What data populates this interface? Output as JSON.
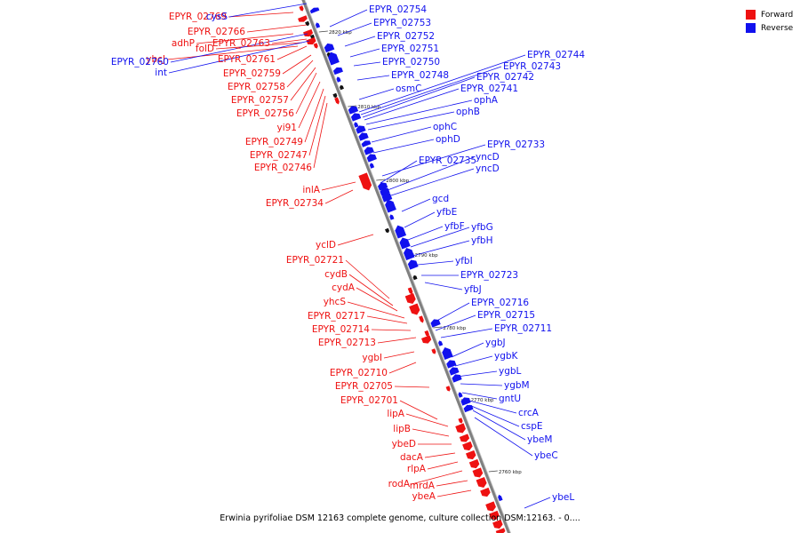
{
  "legend": {
    "forward": {
      "label": "Forward",
      "color": "#ee1111"
    },
    "reverse": {
      "label": "Reverse",
      "color": "#1111ee"
    }
  },
  "caption": "Erwinia pyrifoliae DSM 12163 complete genome, culture collection DSM:12163. - 0....",
  "colors": {
    "axis": "#808080",
    "forward": "#ee1111",
    "reverse": "#1111ee",
    "tiny_feature": "#111111"
  },
  "ticks": [
    "2820 kbp",
    "2810 kbp",
    "2800 kbp",
    "2790 kbp",
    "2780 kbp",
    "2770 kbp",
    "2760 kbp"
  ],
  "forward_labels": [
    "EPYR_02769",
    "EPYR_02766",
    "adhP",
    "EPYR_02763",
    "folD",
    "ybcJ",
    "EPYR_02761",
    "EPYR_02759",
    "EPYR_02758",
    "EPYR_02757",
    "EPYR_02756",
    "yi91",
    "EPYR_02749",
    "EPYR_02747",
    "EPYR_02746",
    "inlA",
    "EPYR_02734",
    "yclD",
    "EPYR_02721",
    "cydB",
    "cydA",
    "yhcS",
    "EPYR_02717",
    "EPYR_02714",
    "EPYR_02713",
    "ygbI",
    "EPYR_02710",
    "EPYR_02705",
    "EPYR_02701",
    "lipA",
    "lipB",
    "ybeD",
    "dacA",
    "rlpA",
    "rodA",
    "mrdA",
    "ybeA"
  ],
  "reverse_labels_left": [
    "cysS",
    "EPYR_02760",
    "int"
  ],
  "reverse_labels_right": [
    "EPYR_02754",
    "EPYR_02753",
    "EPYR_02752",
    "EPYR_02751",
    "EPYR_02750",
    "EPYR_02748",
    "osmC",
    "EPYR_02744",
    "EPYR_02743",
    "EPYR_02742",
    "EPYR_02741",
    "ophA",
    "ophB",
    "ophC",
    "ophD",
    "EPYR_02733",
    "EPYR_02735",
    "yncD",
    "yncD",
    "gcd",
    "yfbE",
    "yfbF",
    "yfbG",
    "yfbH",
    "yfbI",
    "EPYR_02723",
    "yfbJ",
    "EPYR_02716",
    "EPYR_02715",
    "EPYR_02711",
    "ygbJ",
    "ygbK",
    "ygbL",
    "ygbM",
    "gntU",
    "crcA",
    "cspE",
    "ybeM",
    "ybeC",
    "ybeL"
  ]
}
